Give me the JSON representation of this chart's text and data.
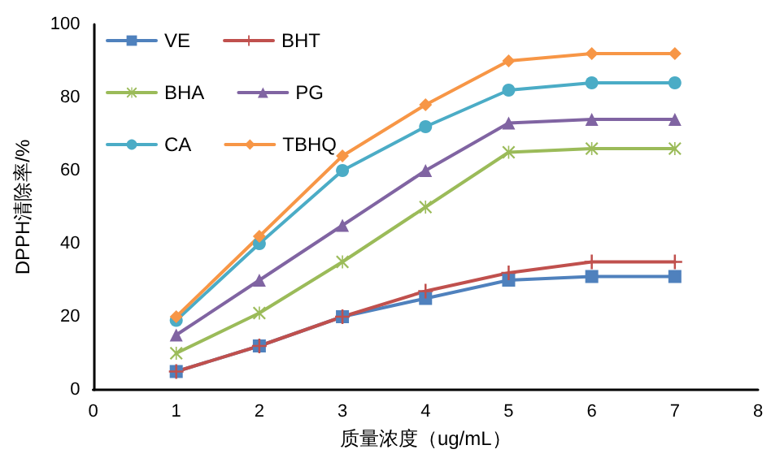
{
  "chart_data": {
    "type": "line",
    "xlabel": "质量浓度（ug/mL）",
    "ylabel": "DPPH清除率/%",
    "x": [
      1,
      2,
      3,
      4,
      5,
      6,
      7
    ],
    "xlim": [
      0,
      8
    ],
    "xticks": [
      0,
      1,
      2,
      3,
      4,
      5,
      6,
      7,
      8
    ],
    "ylim": [
      0,
      100
    ],
    "yticks": [
      0,
      20,
      40,
      60,
      80,
      100
    ],
    "grid": false,
    "legend": "top left",
    "line_style": "solid",
    "series": [
      {
        "name": "VE",
        "color": "#4f81bd",
        "marker": "square",
        "values": [
          5,
          12,
          20,
          25,
          30,
          31,
          31
        ]
      },
      {
        "name": "BHT",
        "color": "#c0504d",
        "marker": "cross",
        "values": [
          5,
          12,
          20,
          27,
          32,
          35,
          35
        ]
      },
      {
        "name": "BHA",
        "color": "#9bbb59",
        "marker": "star",
        "values": [
          10,
          21,
          35,
          50,
          65,
          66,
          66
        ]
      },
      {
        "name": "PG",
        "color": "#8064a2",
        "marker": "triangle",
        "values": [
          15,
          30,
          45,
          60,
          73,
          74,
          74
        ]
      },
      {
        "name": "CA",
        "color": "#4bacc6",
        "marker": "circle",
        "values": [
          19,
          40,
          60,
          72,
          82,
          84,
          84
        ]
      },
      {
        "name": "TBHQ",
        "color": "#f79646",
        "marker": "diamond",
        "values": [
          20,
          42,
          64,
          78,
          90,
          92,
          92
        ]
      }
    ]
  }
}
